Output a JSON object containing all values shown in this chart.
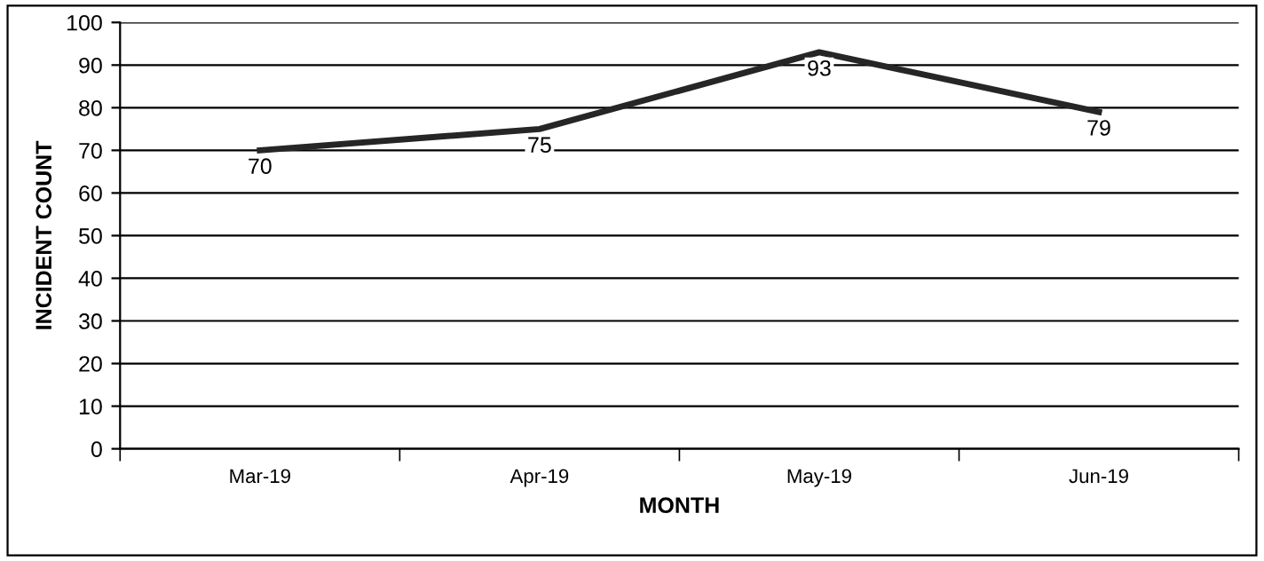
{
  "chart_data": {
    "type": "line",
    "xlabel": "MONTH",
    "ylabel": "INCIDENT COUNT",
    "categories": [
      "Mar-19",
      "Apr-19",
      "May-19",
      "Jun-19"
    ],
    "series": [
      {
        "color": "#262626",
        "values": [
          70,
          75,
          93,
          79
        ]
      }
    ],
    "ylim": [
      0,
      100
    ],
    "yticks": [
      0,
      10,
      20,
      30,
      40,
      50,
      60,
      70,
      80,
      90,
      100
    ],
    "grid": "y",
    "data_labels": true,
    "marker": "none",
    "line_style": "solid"
  }
}
